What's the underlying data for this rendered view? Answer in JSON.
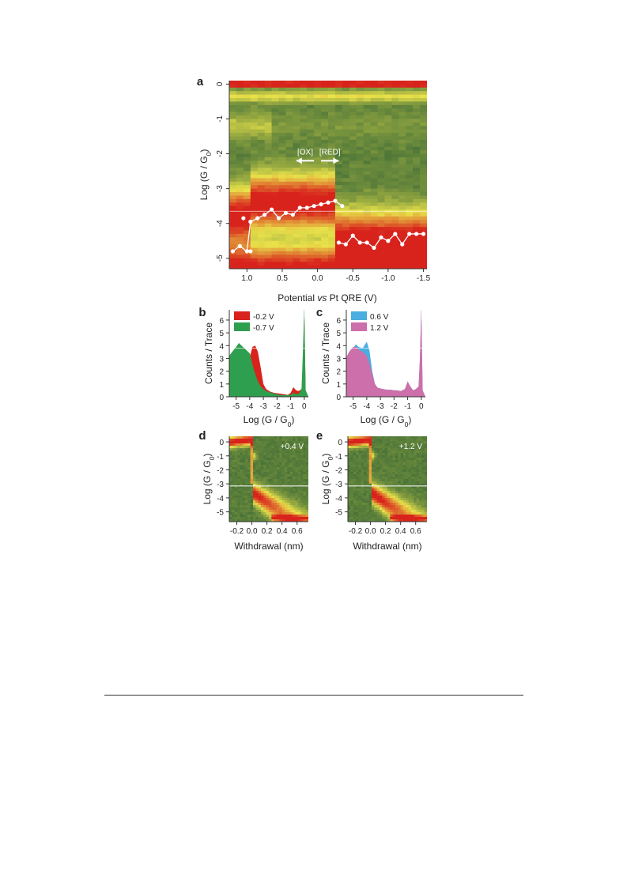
{
  "chart_data": [
    {
      "panel": "a",
      "type": "heatmap",
      "xlabel_prefix": "Potential ",
      "xlabel_italic": "vs",
      "xlabel_suffix": " Pt QRE (V)",
      "ylabel": "Log (G / G",
      "ylabel_sub": "0",
      "ylabel_close": ")",
      "xlim": [
        1.25,
        -1.55
      ],
      "ylim": [
        -5.3,
        0.1
      ],
      "xticks": [
        {
          "v": 1.0,
          "label": "1.0"
        },
        {
          "v": 0.5,
          "label": "0.5"
        },
        {
          "v": 0.0,
          "label": "0.0"
        },
        {
          "v": -0.5,
          "label": "-0.5"
        },
        {
          "v": -1.0,
          "label": "-1.0"
        },
        {
          "v": -1.5,
          "label": "-1.5"
        }
      ],
      "yticks": [
        {
          "v": 0,
          "label": "0"
        },
        {
          "v": -1,
          "label": "-1"
        },
        {
          "v": -2,
          "label": "-2"
        },
        {
          "v": -3,
          "label": "-3"
        },
        {
          "v": -4,
          "label": "-4"
        },
        {
          "v": -5,
          "label": "-5"
        }
      ],
      "arrows": [
        {
          "label": "[OX]",
          "from": 0.05,
          "to": 0.3,
          "y": -2.2
        },
        {
          "label": "[RED]",
          "from": -0.05,
          "to": -0.3,
          "y": -2.2
        }
      ],
      "trace_1": {
        "x": [
          1.2,
          1.1,
          1.0,
          0.95,
          0.85,
          0.75,
          0.65,
          0.55,
          0.45,
          0.35,
          0.25,
          0.15,
          0.05,
          -0.05,
          -0.15,
          -0.25,
          -0.35
        ],
        "y": [
          -4.8,
          -4.65,
          -4.8,
          -3.95,
          -3.85,
          -3.75,
          -3.6,
          -3.85,
          -3.7,
          -3.75,
          -3.55,
          -3.55,
          -3.5,
          -3.45,
          -3.4,
          -3.35,
          -3.5
        ]
      },
      "trace_2": {
        "x": [
          -0.3,
          -0.4,
          -0.5,
          -0.6,
          -0.7,
          -0.8,
          -0.9,
          -1.0,
          -1.1,
          -1.2,
          -1.3,
          -1.4,
          -1.5
        ],
        "y": [
          -4.55,
          -4.6,
          -4.35,
          -4.55,
          -4.55,
          -4.7,
          -4.4,
          -4.5,
          -4.3,
          -4.6,
          -4.3,
          -4.3,
          -4.3
        ]
      },
      "isolated_points": [
        {
          "x": 1.05,
          "y": -3.85
        },
        {
          "x": 0.95,
          "y": -4.8
        }
      ],
      "reference_line_y": -3.65,
      "colors": {
        "low": "#2b5e35",
        "mid": "#e9e24a",
        "high": "#d8231c",
        "trace": "#ffffff"
      }
    },
    {
      "panel": "b",
      "type": "area",
      "xlabel": "Log (G / G",
      "xlabel_sub": "0",
      "xlabel_close": ")",
      "ylabel": "Counts / Trace",
      "xlim": [
        -5.5,
        0.3
      ],
      "ylim": [
        0,
        6.8
      ],
      "xticks": [
        {
          "v": -5,
          "label": "-5"
        },
        {
          "v": -4,
          "label": "-4"
        },
        {
          "v": -3,
          "label": "-3"
        },
        {
          "v": -2,
          "label": "-2"
        },
        {
          "v": -1,
          "label": "-1"
        },
        {
          "v": 0,
          "label": "0"
        }
      ],
      "yticks": [
        {
          "v": 0,
          "label": "0"
        },
        {
          "v": 1,
          "label": "1"
        },
        {
          "v": 2,
          "label": "2"
        },
        {
          "v": 3,
          "label": "3"
        },
        {
          "v": 4,
          "label": "4"
        },
        {
          "v": 5,
          "label": "5"
        },
        {
          "v": 6,
          "label": "6"
        }
      ],
      "reference_line_y": 3.8,
      "series": [
        {
          "name": "-0.2 V",
          "color": "#d8231c",
          "x": [
            -5.5,
            -5.3,
            -5.0,
            -4.6,
            -4.3,
            -4.0,
            -3.8,
            -3.6,
            -3.4,
            -3.2,
            -3.0,
            -2.8,
            -2.5,
            -2.2,
            -2.0,
            -1.8,
            -1.5,
            -1.2,
            -1.0,
            -0.8,
            -0.6,
            -0.4,
            -0.2,
            -0.1,
            0.0,
            0.1,
            0.3
          ],
          "y": [
            3.0,
            3.3,
            3.6,
            3.75,
            3.6,
            3.1,
            3.9,
            4.0,
            3.5,
            2.3,
            1.0,
            0.6,
            0.4,
            0.3,
            0.28,
            0.25,
            0.2,
            0.15,
            0.3,
            0.75,
            0.5,
            0.45,
            0.6,
            2.5,
            7.0,
            0.5,
            0
          ]
        },
        {
          "name": "-0.7 V",
          "color": "#2e9f4e",
          "x": [
            -5.5,
            -5.3,
            -5.0,
            -4.8,
            -4.6,
            -4.3,
            -4.0,
            -3.8,
            -3.6,
            -3.4,
            -3.2,
            -3.0,
            -2.8,
            -2.5,
            -2.2,
            -2.0,
            -1.8,
            -1.5,
            -1.2,
            -1.0,
            -0.8,
            -0.6,
            -0.4,
            -0.2,
            -0.1,
            0.0,
            0.1,
            0.3
          ],
          "y": [
            3.2,
            3.5,
            3.9,
            4.2,
            4.0,
            3.7,
            3.4,
            2.5,
            1.8,
            1.2,
            0.8,
            0.6,
            0.45,
            0.35,
            0.25,
            0.2,
            0.15,
            0.12,
            0.15,
            0.15,
            0.3,
            0.2,
            0.25,
            0.6,
            3.5,
            7.0,
            0.5,
            0
          ]
        }
      ]
    },
    {
      "panel": "c",
      "type": "area",
      "xlabel": "Log (G / G",
      "xlabel_sub": "0",
      "xlabel_close": ")",
      "ylabel": "Counts / Trace",
      "xlim": [
        -5.5,
        0.3
      ],
      "ylim": [
        0,
        6.8
      ],
      "xticks": [
        {
          "v": -5,
          "label": "-5"
        },
        {
          "v": -4,
          "label": "-4"
        },
        {
          "v": -3,
          "label": "-3"
        },
        {
          "v": -2,
          "label": "-2"
        },
        {
          "v": -1,
          "label": "-1"
        },
        {
          "v": 0,
          "label": "0"
        }
      ],
      "yticks": [
        {
          "v": 0,
          "label": "0"
        },
        {
          "v": 1,
          "label": "1"
        },
        {
          "v": 2,
          "label": "2"
        },
        {
          "v": 3,
          "label": "3"
        },
        {
          "v": 4,
          "label": "4"
        },
        {
          "v": 5,
          "label": "5"
        },
        {
          "v": 6,
          "label": "6"
        }
      ],
      "reference_line_y": 3.8,
      "series": [
        {
          "name": "0.6 V",
          "color": "#4aaee0",
          "x": [
            -5.5,
            -5.3,
            -5.0,
            -4.8,
            -4.6,
            -4.3,
            -4.0,
            -3.8,
            -3.6,
            -3.4,
            -3.2,
            -3.0,
            -2.8,
            -2.5,
            -2.2,
            -2.0,
            -1.8,
            -1.5,
            -1.2,
            -1.0,
            -0.8,
            -0.6,
            -0.4,
            -0.2,
            -0.1,
            0.0,
            0.1,
            0.3
          ],
          "y": [
            3.0,
            3.4,
            3.8,
            4.1,
            3.9,
            3.8,
            4.3,
            3.6,
            2.0,
            1.0,
            0.7,
            0.65,
            0.6,
            0.55,
            0.55,
            0.5,
            0.5,
            0.45,
            0.6,
            1.2,
            0.8,
            0.5,
            0.6,
            0.8,
            3.0,
            7.0,
            0.5,
            0
          ]
        },
        {
          "name": "1.2 V",
          "color": "#cc6fab",
          "x": [
            -5.5,
            -5.3,
            -5.0,
            -4.8,
            -4.6,
            -4.3,
            -4.0,
            -3.8,
            -3.6,
            -3.4,
            -3.2,
            -3.0,
            -2.8,
            -2.5,
            -2.2,
            -2.0,
            -1.8,
            -1.5,
            -1.2,
            -1.0,
            -0.8,
            -0.6,
            -0.4,
            -0.2,
            -0.1,
            0.0,
            0.1,
            0.3
          ],
          "y": [
            3.1,
            3.5,
            3.9,
            3.9,
            3.7,
            3.5,
            3.2,
            2.6,
            1.8,
            1.0,
            0.7,
            0.65,
            0.6,
            0.55,
            0.55,
            0.5,
            0.5,
            0.45,
            0.6,
            1.2,
            0.8,
            0.5,
            0.6,
            0.8,
            3.0,
            7.0,
            0.5,
            0
          ]
        }
      ]
    },
    {
      "panel": "d",
      "type": "heatmap",
      "annotation": "+0.4 V",
      "xlabel": "Withdrawal (nm)",
      "ylabel": "Log (G / G",
      "ylabel_sub": "0",
      "ylabel_close": ")",
      "xlim": [
        -0.3,
        0.75
      ],
      "ylim": [
        -5.7,
        0.4
      ],
      "xticks": [
        {
          "v": -0.2,
          "label": "-0.2"
        },
        {
          "v": 0.0,
          "label": "0.0"
        },
        {
          "v": 0.2,
          "label": "0.2"
        },
        {
          "v": 0.4,
          "label": "0.4"
        },
        {
          "v": 0.6,
          "label": "0.6"
        }
      ],
      "yticks": [
        {
          "v": 0,
          "label": "0"
        },
        {
          "v": -1,
          "label": "-1"
        },
        {
          "v": -2,
          "label": "-2"
        },
        {
          "v": -3,
          "label": "-3"
        },
        {
          "v": -4,
          "label": "-4"
        },
        {
          "v": -5,
          "label": "-5"
        }
      ],
      "reference_line_y": -3.15,
      "colors": {
        "low": "#2b5e35",
        "mid": "#e9e24a",
        "high": "#d8231c"
      }
    },
    {
      "panel": "e",
      "type": "heatmap",
      "annotation": "+1.2 V",
      "xlabel": "Withdrawal (nm)",
      "ylabel": "Log (G / G",
      "ylabel_sub": "0",
      "ylabel_close": ")",
      "xlim": [
        -0.3,
        0.75
      ],
      "ylim": [
        -5.7,
        0.4
      ],
      "xticks": [
        {
          "v": -0.2,
          "label": "-0.2"
        },
        {
          "v": 0.0,
          "label": "0.0"
        },
        {
          "v": 0.2,
          "label": "0.2"
        },
        {
          "v": 0.4,
          "label": "0.4"
        },
        {
          "v": 0.6,
          "label": "0.6"
        }
      ],
      "yticks": [
        {
          "v": 0,
          "label": "0"
        },
        {
          "v": -1,
          "label": "-1"
        },
        {
          "v": -2,
          "label": "-2"
        },
        {
          "v": -3,
          "label": "-3"
        },
        {
          "v": -4,
          "label": "-4"
        },
        {
          "v": -5,
          "label": "-5"
        }
      ],
      "reference_line_y": -3.15,
      "colors": {
        "low": "#2b5e35",
        "mid": "#e9e24a",
        "high": "#d8231c"
      }
    }
  ]
}
